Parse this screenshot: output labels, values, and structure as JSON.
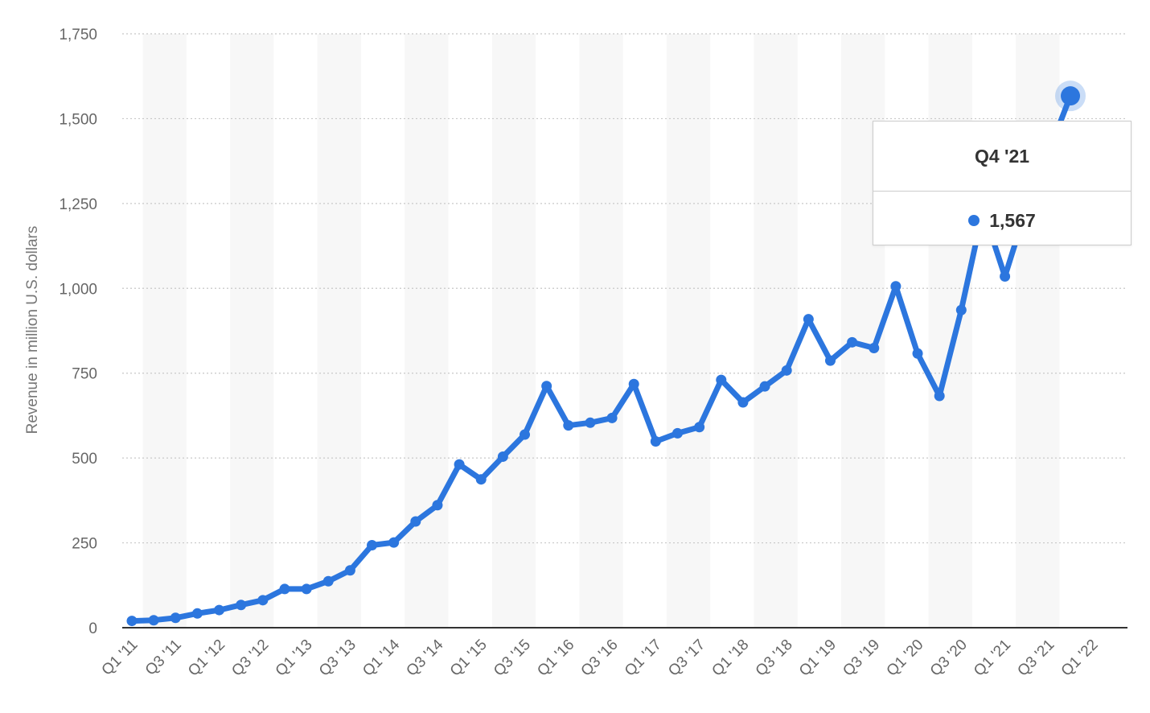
{
  "chart_data": {
    "type": "line",
    "title": "",
    "xlabel": "",
    "ylabel": "Revenue in million U.S. dollars",
    "ylim": [
      0,
      1750
    ],
    "yticks": [
      0,
      250,
      500,
      750,
      1000,
      1250,
      1500,
      1750
    ],
    "ytick_labels": [
      "0",
      "250",
      "500",
      "750",
      "1,000",
      "1,250",
      "1,500",
      "1,750"
    ],
    "x_tick_labels": [
      "Q1 '11",
      "Q3 '11",
      "Q1 '12",
      "Q3 '12",
      "Q1 '13",
      "Q3 '13",
      "Q1 '14",
      "Q3 '14",
      "Q1 '15",
      "Q3 '15",
      "Q1 '16",
      "Q3 '16",
      "Q1 '17",
      "Q3 '17",
      "Q1 '18",
      "Q3 '18",
      "Q1 '19",
      "Q3 '19",
      "Q1 '20",
      "Q3 '20",
      "Q1 '21",
      "Q3 '21",
      "Q1 '22"
    ],
    "grid": true,
    "categories": [
      "Q1 '11",
      "Q2 '11",
      "Q3 '11",
      "Q4 '11",
      "Q1 '12",
      "Q2 '12",
      "Q3 '12",
      "Q4 '12",
      "Q1 '13",
      "Q2 '13",
      "Q3 '13",
      "Q4 '13",
      "Q1 '14",
      "Q2 '14",
      "Q3 '14",
      "Q4 '14",
      "Q1 '15",
      "Q2 '15",
      "Q3 '15",
      "Q4 '15",
      "Q1 '16",
      "Q2 '16",
      "Q3 '16",
      "Q4 '16",
      "Q1 '17",
      "Q2 '17",
      "Q3 '17",
      "Q4 '17",
      "Q1 '18",
      "Q2 '18",
      "Q3 '18",
      "Q4 '18",
      "Q1 '19",
      "Q2 '19",
      "Q3 '19",
      "Q4 '19",
      "Q1 '20",
      "Q2 '20",
      "Q3 '20",
      "Q4 '20",
      "Q1 '21",
      "Q2 '21",
      "Q3 '21",
      "Q4 '21"
    ],
    "series": [
      {
        "name": "",
        "color": "#2c76de",
        "values": [
          20,
          22,
          29,
          42,
          52,
          67,
          81,
          114,
          114,
          137,
          169,
          243,
          251,
          313,
          361,
          481,
          437,
          504,
          569,
          712,
          596,
          604,
          618,
          718,
          549,
          573,
          591,
          730,
          664,
          711,
          758,
          909,
          787,
          841,
          824,
          1006,
          808,
          683,
          936,
          1231,
          1035,
          1240,
          1400,
          1567
        ]
      }
    ]
  },
  "tooltip": {
    "title": "Q4 '21",
    "value": "1,567",
    "index": 43
  }
}
